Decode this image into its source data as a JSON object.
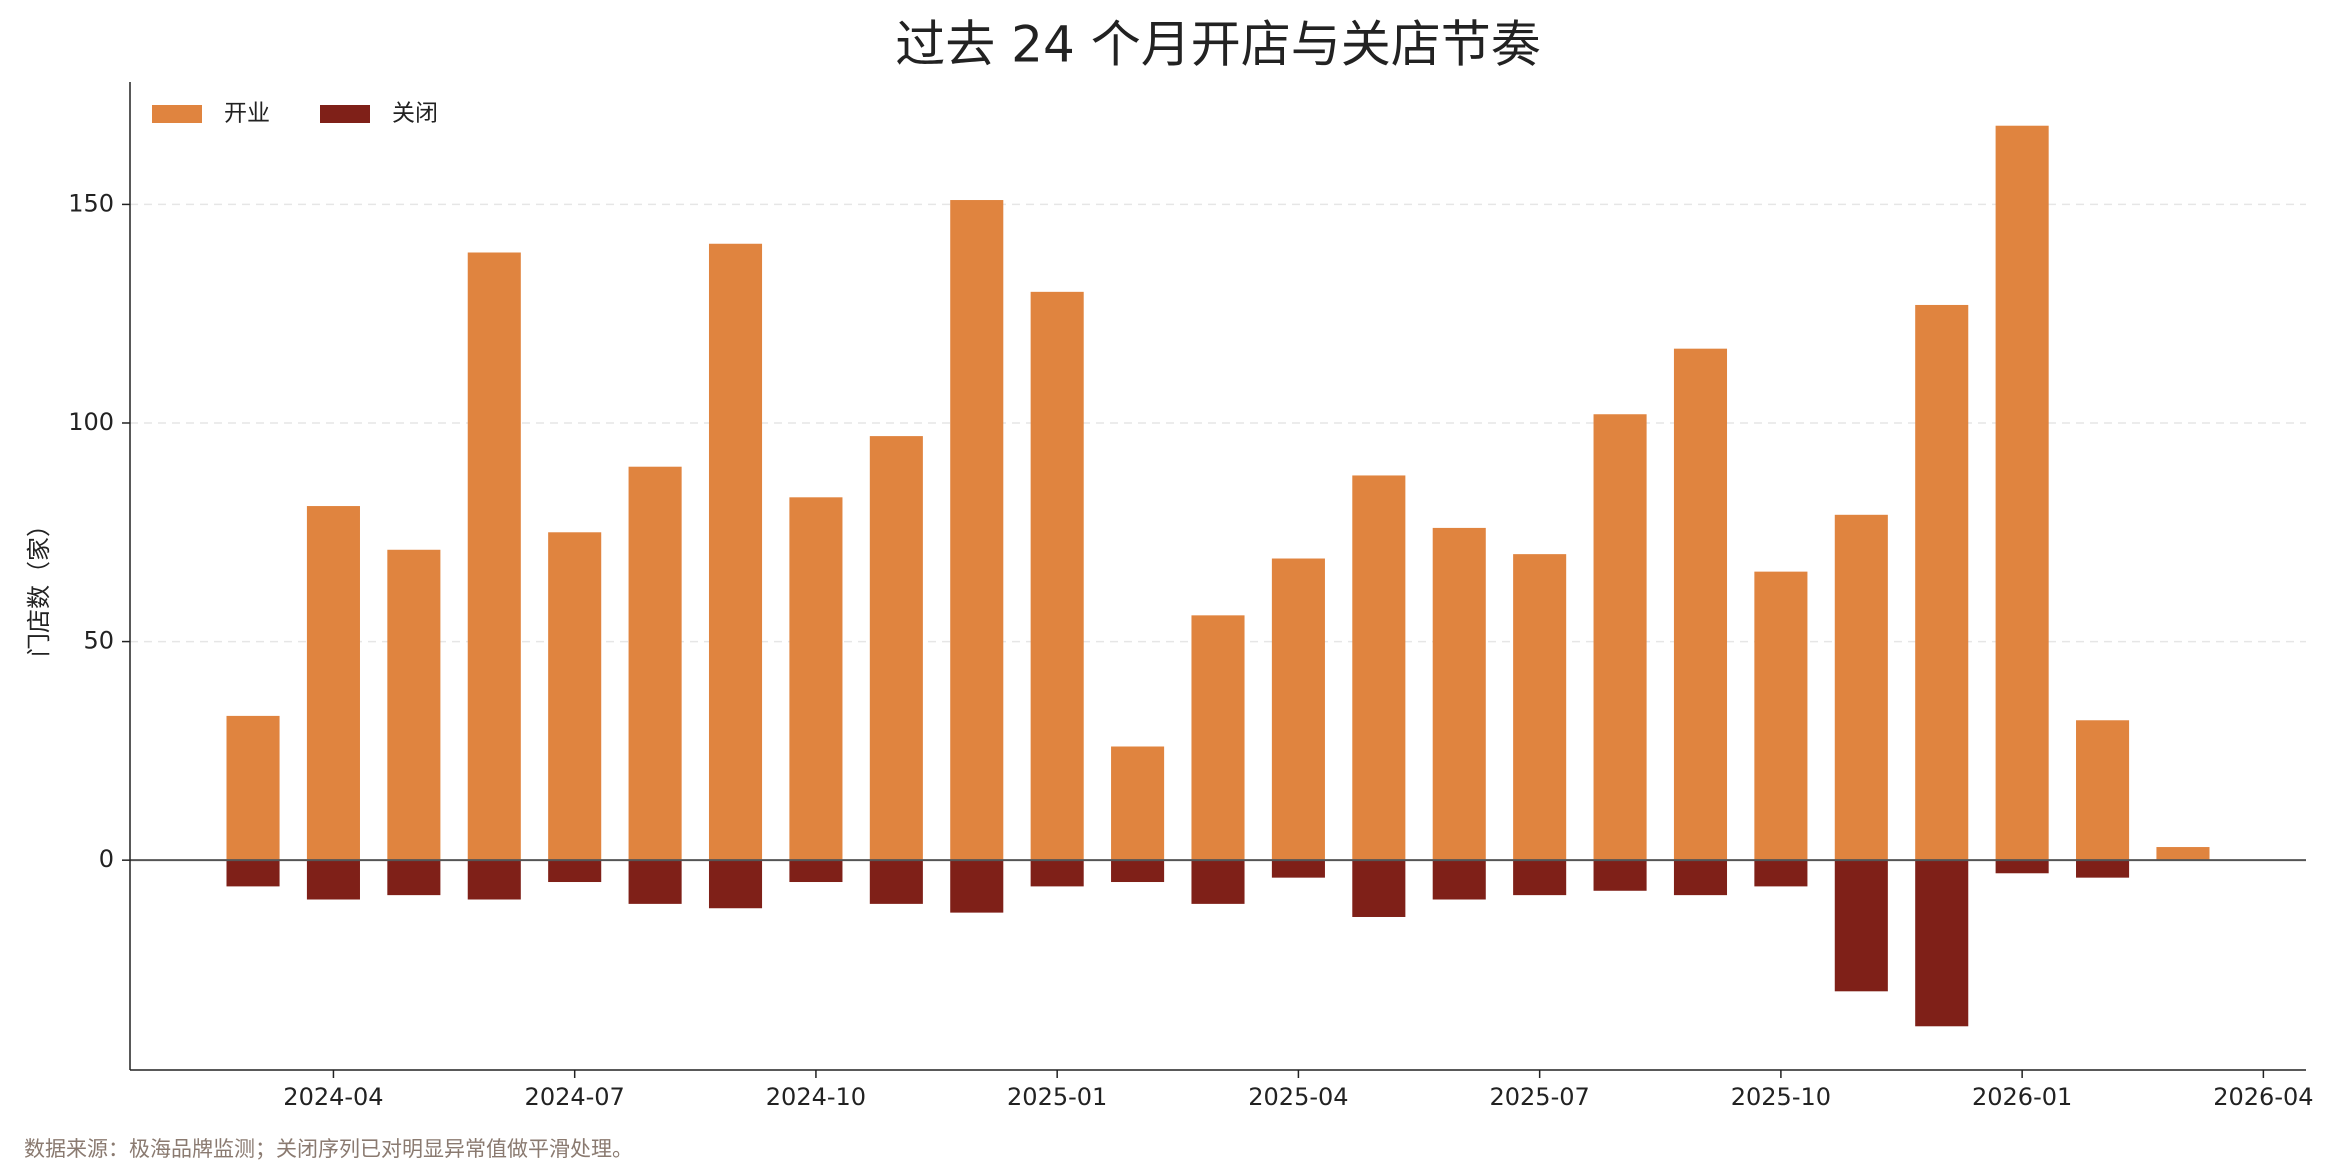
{
  "chart_data": {
    "type": "bar",
    "title": "过去 24 个月开店与关店节奏",
    "y_label": "门店数（家）",
    "source": "数据来源：极海品牌监测；关闭序列已对明显异常值做平滑处理。",
    "x": [
      "2024-03",
      "2024-04",
      "2024-05",
      "2024-06",
      "2024-07",
      "2024-08",
      "2024-09",
      "2024-10",
      "2024-11",
      "2024-12",
      "2025-01",
      "2025-02",
      "2025-03",
      "2025-04",
      "2025-05",
      "2025-06",
      "2025-07",
      "2025-08",
      "2025-09",
      "2025-10",
      "2025-11",
      "2025-12",
      "2026-01",
      "2026-02",
      "2026-03"
    ],
    "series": [
      {
        "name": "开业",
        "color": "#e0843f",
        "values": [
          33,
          81,
          71,
          139,
          75,
          90,
          141,
          83,
          97,
          151,
          130,
          26,
          56,
          69,
          88,
          76,
          70,
          102,
          117,
          66,
          79,
          127,
          168,
          32,
          3
        ]
      },
      {
        "name": "关闭",
        "color": "#7f2018",
        "values": [
          -6,
          -9,
          -8,
          -9,
          -5,
          -10,
          -11,
          -5,
          -10,
          -12,
          -6,
          -5,
          -10,
          -4,
          -13,
          -9,
          -8,
          -7,
          -8,
          -6,
          -30,
          -38,
          -3,
          -4,
          0
        ]
      }
    ],
    "xlim": [
      "2024-02",
      "2026-04"
    ],
    "xticks": [
      "2024-04",
      "2024-07",
      "2024-10",
      "2025-01",
      "2025-04",
      "2025-07",
      "2025-10",
      "2026-01",
      "2026-04"
    ],
    "ylim": [
      -48,
      178
    ],
    "yticks": [
      0,
      50,
      100,
      150
    ],
    "grid": true,
    "legend": "upper left"
  }
}
